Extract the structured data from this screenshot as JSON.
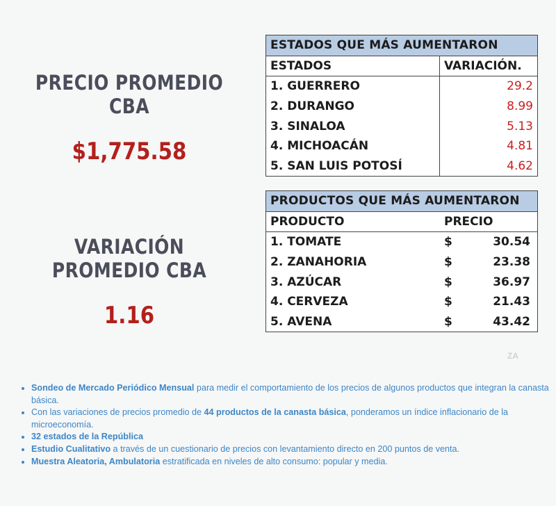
{
  "precio": {
    "title": "PRECIO PROMEDIO CBA",
    "value": "$1,775.58"
  },
  "variacion": {
    "title": "VARIACIÓN PROMEDIO CBA",
    "value": "1.16"
  },
  "estados_table": {
    "banner": "ESTADOS QUE MÁS AUMENTARON",
    "col_estados": "ESTADOS",
    "col_variacion": "VARIACIÓN.",
    "rows": [
      {
        "name": "1. GUERRERO",
        "value": "29.2"
      },
      {
        "name": "2. DURANGO",
        "value": "8.99"
      },
      {
        "name": "3. SINALOA",
        "value": "5.13"
      },
      {
        "name": "4. MICHOACÁN",
        "value": "4.81"
      },
      {
        "name": "5. SAN LUIS POTOSÍ",
        "value": "4.62"
      }
    ]
  },
  "productos_table": {
    "banner": "PRODUCTOS QUE MÁS AUMENTARON",
    "col_producto": "PRODUCTO",
    "col_precio": "PRECIO",
    "rows": [
      {
        "name": "1. TOMATE",
        "currency": "$",
        "price": "30.54"
      },
      {
        "name": "2. ZANAHORIA",
        "currency": "$",
        "price": "23.38"
      },
      {
        "name": "3. AZÚCAR",
        "currency": "$",
        "price": "36.97"
      },
      {
        "name": "4. CERVEZA",
        "currency": "$",
        "price": "21.43"
      },
      {
        "name": "5. AVENA",
        "currency": "$",
        "price": "43.42"
      }
    ]
  },
  "watermark": "ZA",
  "notes": [
    {
      "bold": "Sondeo de Mercado Periódico Mensual",
      "text": " para medir el comportamiento de los precios de algunos productos que integran la canasta básica."
    },
    {
      "pre": "Con las variaciones de precios promedio de ",
      "bold": "44 productos de la canasta básica",
      "text": ", ponderamos un índice inflacionario de la microeconomía."
    },
    {
      "bold": " 32 estados de la República",
      "text": ""
    },
    {
      "bold": "Estudio Cualitativo",
      "text": " a través de un cuestionario de precios con levantamiento directo en 200 puntos de venta."
    },
    {
      "bold": "Muestra Aleatoria, Ambulatoria",
      "text": " estratificada en niveles de alto consumo: popular y media."
    }
  ],
  "colors": {
    "title_gray": "#4a4e5a",
    "value_red": "#b3201c",
    "banner_blue": "#b8cce4",
    "variation_red": "#c81e1e",
    "notes_blue": "#3d86c6"
  }
}
